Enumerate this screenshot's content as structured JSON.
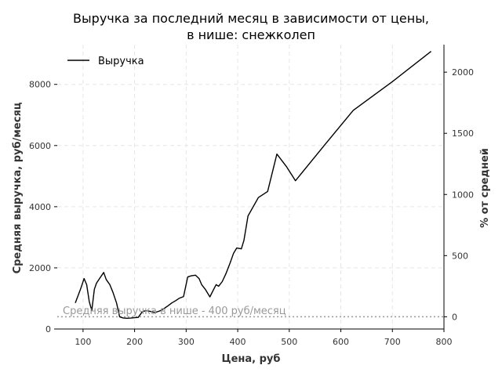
{
  "chart_data": {
    "type": "line",
    "title": [
      "Выручка за последний месяц в зависимости от цены,",
      "в нише: снежколеп"
    ],
    "xlabel": "Цена, руб",
    "ylabel": "Средняя выручка, руб/месяц",
    "y2label": "% от средней",
    "xlim": [
      50,
      800
    ],
    "ylim": [
      0,
      9300
    ],
    "y2lim": [
      -100,
      2225
    ],
    "xticks": [
      100,
      200,
      300,
      400,
      500,
      600,
      700,
      800
    ],
    "yticks": [
      0,
      2000,
      4000,
      6000,
      8000
    ],
    "y2ticks": [
      0,
      500,
      1000,
      1500,
      2000
    ],
    "grid": true,
    "legend_position": "top-left",
    "series": [
      {
        "name": "Выручка",
        "color": "#000000",
        "x": [
          85,
          95,
          102,
          107,
          112,
          117,
          122,
          126,
          132,
          140,
          145,
          152,
          158,
          165,
          171,
          178,
          185,
          192,
          200,
          207,
          215,
          222,
          230,
          240,
          250,
          258,
          265,
          272,
          280,
          287,
          295,
          303,
          310,
          318,
          325,
          330,
          337,
          346,
          352,
          358,
          363,
          370,
          377,
          385,
          392,
          398,
          407,
          412,
          420,
          440,
          458,
          476,
          495,
          512,
          570,
          624,
          700,
          775
        ],
        "y": [
          850,
          1300,
          1650,
          1450,
          900,
          600,
          1300,
          1500,
          1650,
          1850,
          1620,
          1450,
          1200,
          850,
          400,
          360,
          350,
          355,
          370,
          380,
          570,
          600,
          580,
          540,
          600,
          680,
          760,
          850,
          930,
          1010,
          1060,
          1700,
          1740,
          1760,
          1650,
          1450,
          1300,
          1050,
          1250,
          1450,
          1400,
          1550,
          1800,
          2150,
          2480,
          2650,
          2620,
          2900,
          3700,
          4300,
          4500,
          5720,
          5300,
          4850,
          6050,
          7150,
          8090,
          9080
        ]
      }
    ],
    "annotations": [
      {
        "text": "Средняя выручка в нише - 400 руб/месяц",
        "y": 400,
        "color": "#999999"
      }
    ]
  }
}
